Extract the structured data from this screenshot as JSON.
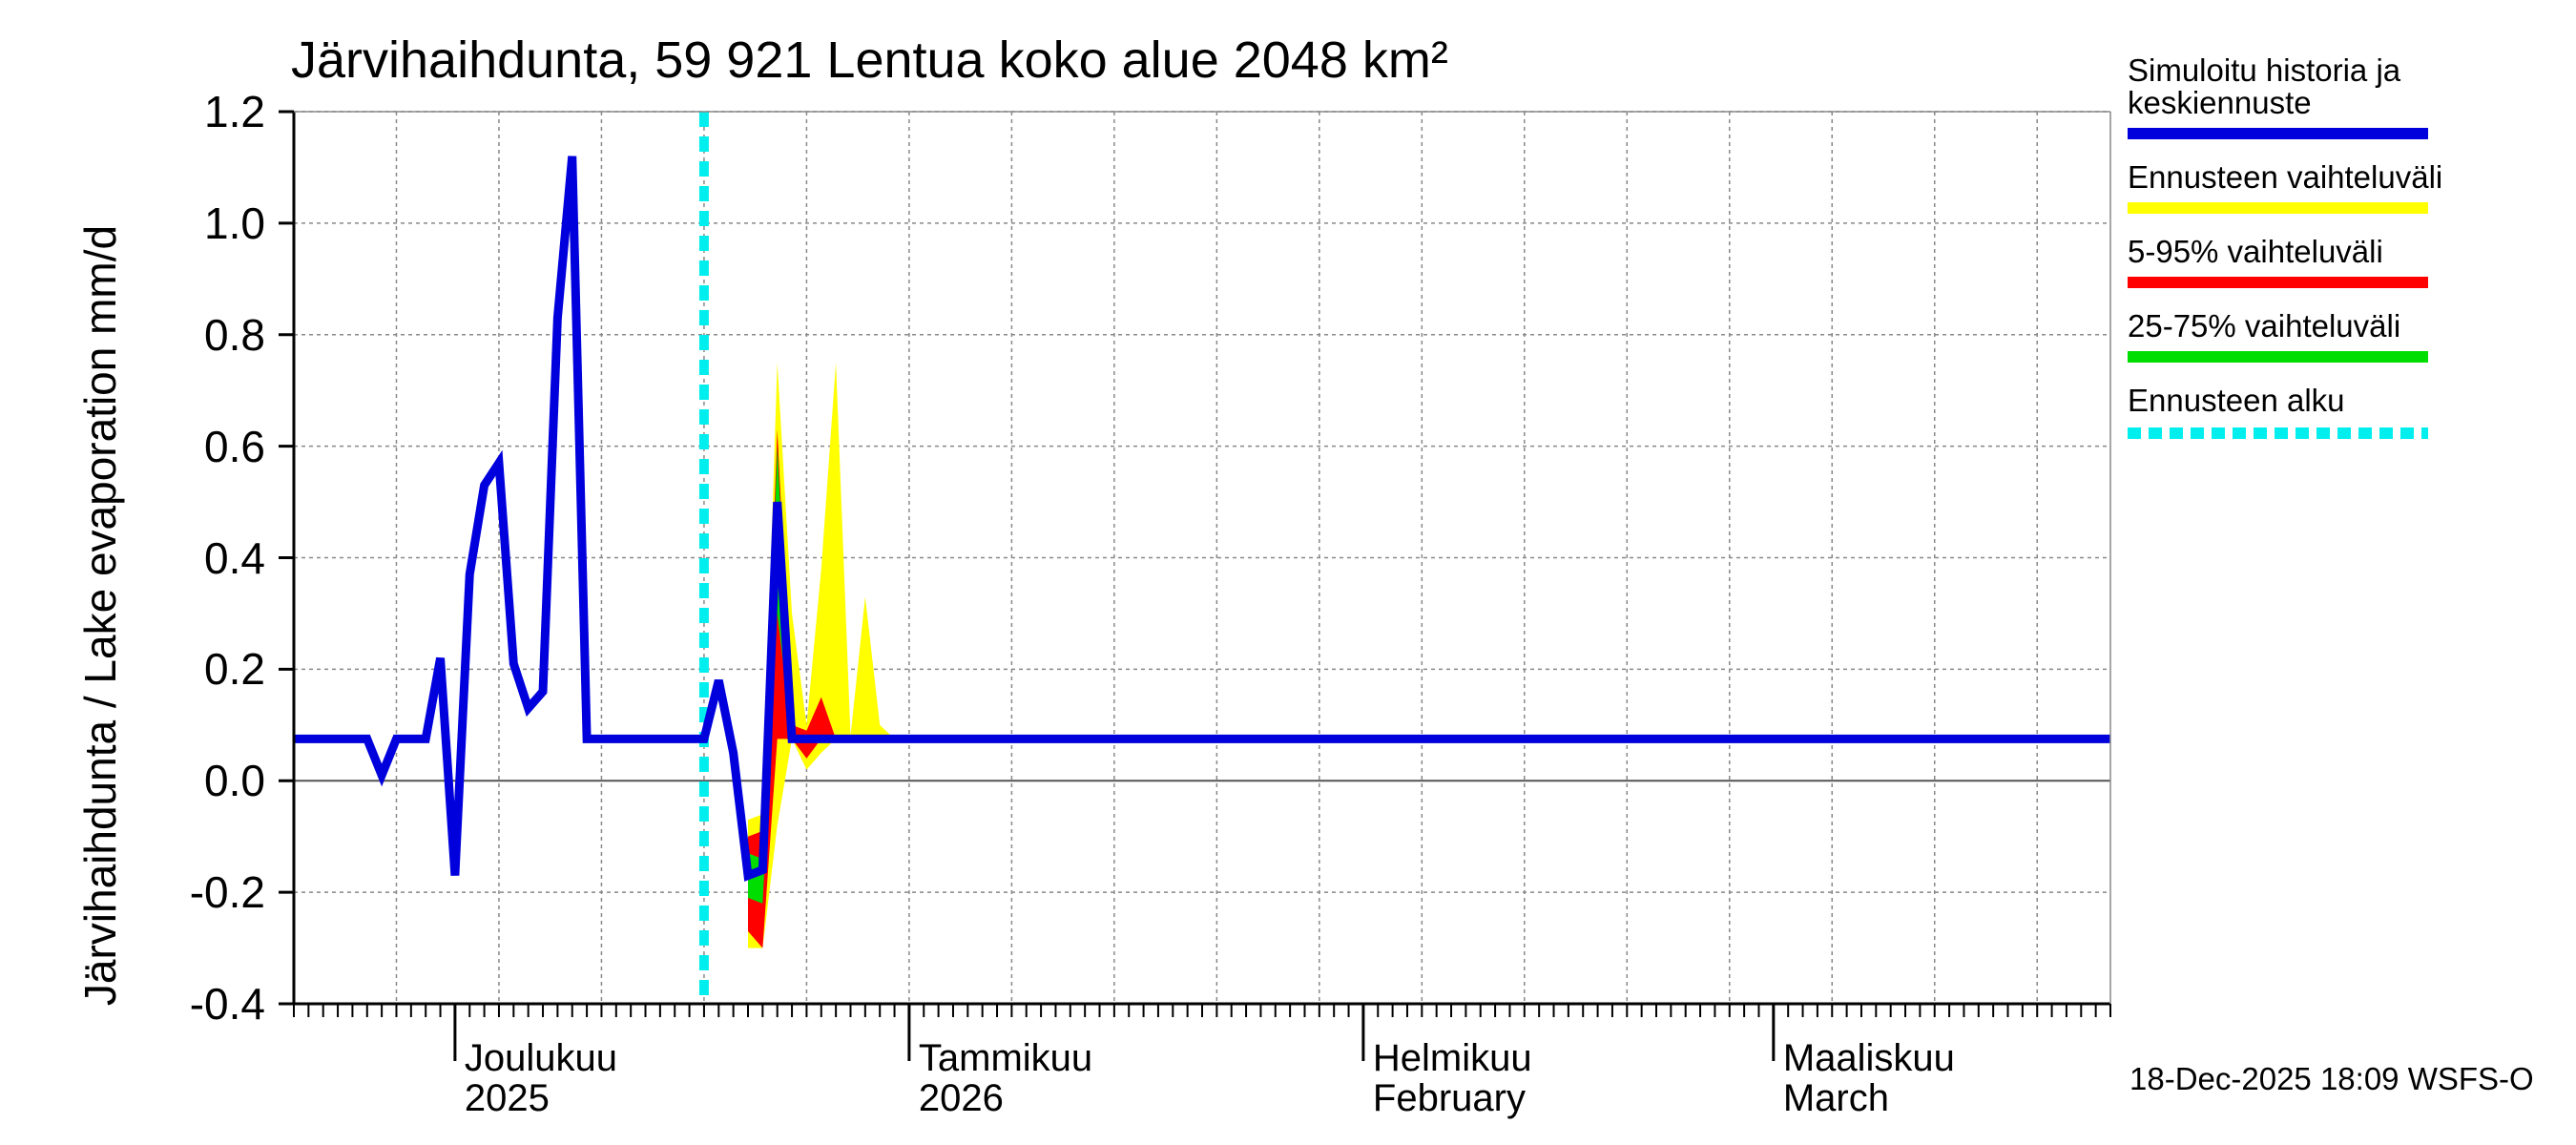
{
  "title": "Järvihaihdunta, 59 921 Lentua koko alue 2048 km²",
  "y_axis_label": "Järvihaihdunta / Lake evaporation   mm/d",
  "timestamp": "18-Dec-2025 18:09 WSFS-O",
  "legend": {
    "sim_line1": "Simuloitu historia ja",
    "sim_line2": "keskiennuste",
    "range": "Ennusteen vaihteluväli",
    "p5_95": "5-95% vaihteluväli",
    "p25_75": "25-75% vaihteluväli",
    "start": "Ennusteen alku"
  },
  "colors": {
    "median": "#0000dd",
    "range": "#ffff00",
    "p5_95": "#ff0000",
    "p25_75": "#00dd00",
    "forecast_start": "#00eeee",
    "grid": "#888888"
  },
  "chart_data": {
    "type": "line",
    "title": "Järvihaihdunta, 59 921 Lentua koko alue 2048 km²",
    "ylabel": "Järvihaihdunta / Lake evaporation   mm/d",
    "ylim": [
      -0.4,
      1.2
    ],
    "yticks": [
      "1.2",
      "1.0",
      "0.8",
      "0.6",
      "0.4",
      "0.2",
      "0.0",
      "-0.2",
      "-0.4"
    ],
    "x_unit": "days since 2025-11-20",
    "xlim": [
      0,
      124
    ],
    "grid": true,
    "month_labels": [
      {
        "x": 11,
        "line1": "Joulukuu",
        "line2": "2025"
      },
      {
        "x": 42,
        "line1": "Tammikuu",
        "line2": "2026"
      },
      {
        "x": 73,
        "line1": "Helmikuu",
        "line2": "February"
      },
      {
        "x": 101,
        "line1": "Maaliskuu",
        "line2": "March"
      }
    ],
    "forecast_start_x": 28,
    "series": [
      {
        "name": "Simuloitu historia ja keskiennuste",
        "x": [
          0,
          5,
          6,
          7,
          9,
          10,
          11,
          12,
          13,
          14,
          15,
          16,
          17,
          18,
          19,
          20,
          21,
          28,
          29,
          30,
          31,
          32,
          33,
          34,
          124
        ],
        "y": [
          0.075,
          0.075,
          0.01,
          0.075,
          0.075,
          0.22,
          -0.17,
          0.37,
          0.53,
          0.57,
          0.21,
          0.13,
          0.16,
          0.83,
          1.12,
          0.075,
          0.075,
          0.075,
          0.18,
          0.05,
          -0.17,
          -0.16,
          0.5,
          0.075,
          0.075
        ]
      },
      {
        "name": "Ennusteen vaihteluväli",
        "x": [
          31,
          32,
          33,
          34,
          35,
          36,
          37,
          38,
          39,
          40,
          41,
          42
        ],
        "upper": [
          -0.07,
          -0.06,
          0.75,
          0.3,
          0.1,
          0.38,
          0.75,
          0.08,
          0.33,
          0.1,
          0.075,
          0.075
        ],
        "lower": [
          -0.3,
          -0.3,
          -0.08,
          0.075,
          0.02,
          0.05,
          0.075,
          0.075,
          0.075,
          0.075,
          0.075,
          0.075
        ]
      },
      {
        "name": "5-95% vaihteluväli",
        "x": [
          31,
          32,
          33,
          34,
          35,
          36,
          37,
          38
        ],
        "upper": [
          -0.1,
          -0.09,
          0.63,
          0.1,
          0.09,
          0.15,
          0.075,
          0.075
        ],
        "lower": [
          -0.27,
          -0.3,
          0.075,
          0.075,
          0.04,
          0.075,
          0.075,
          0.075
        ]
      },
      {
        "name": "25-75% vaihteluväli",
        "x": [
          31,
          32,
          33,
          34
        ],
        "upper": [
          -0.13,
          -0.14,
          0.6,
          0.075
        ],
        "lower": [
          -0.21,
          -0.22,
          0.3,
          0.075
        ]
      }
    ]
  }
}
